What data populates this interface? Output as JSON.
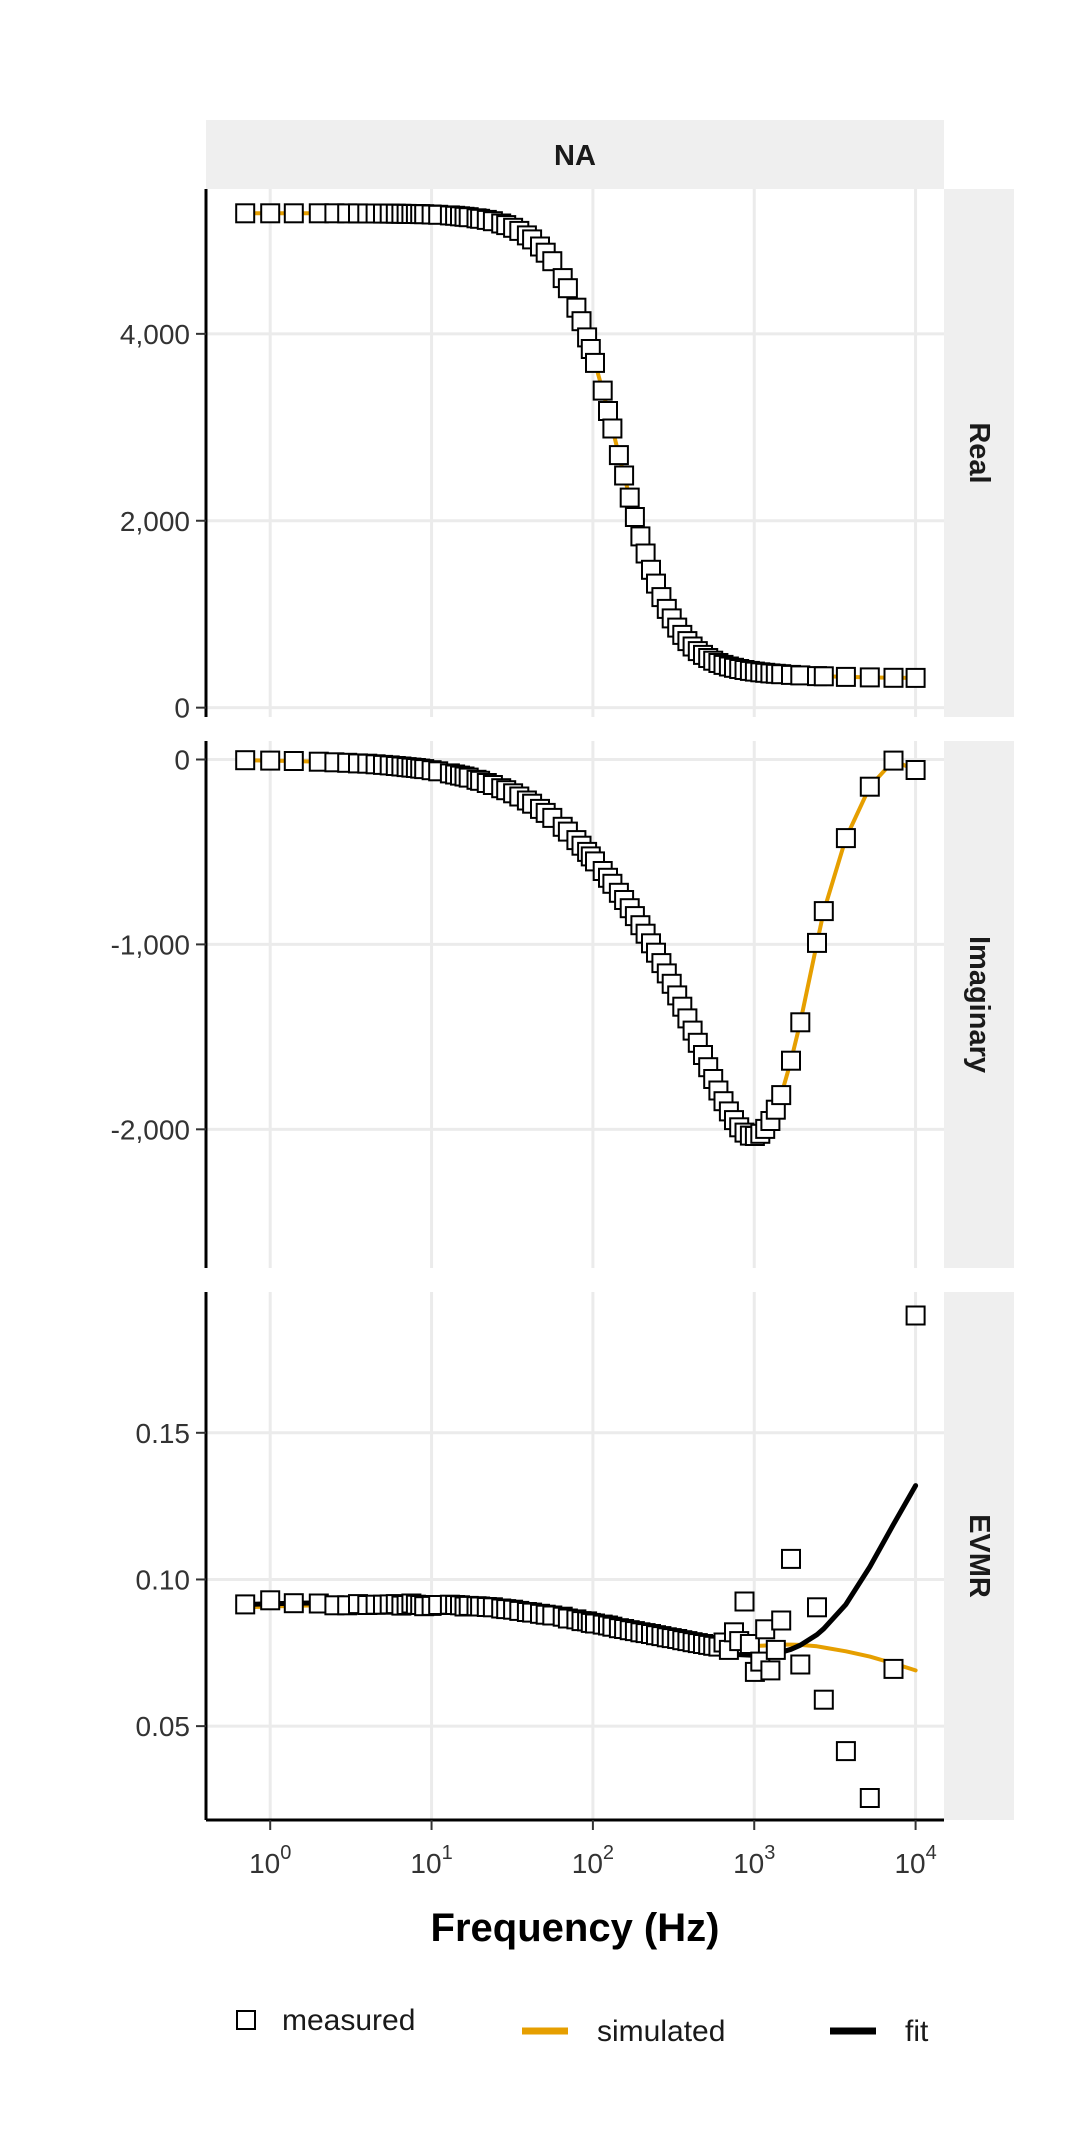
{
  "chart_data": {
    "type": "scatter",
    "facet_column_strip": "NA",
    "xlabel": "Frequency (Hz)",
    "x_scale": "log10",
    "xlim": [
      0.4,
      15000
    ],
    "x_tick_labels": [
      {
        "value": 1,
        "base": "10",
        "exp": "0"
      },
      {
        "value": 10,
        "base": "10",
        "exp": "1"
      },
      {
        "value": 100,
        "base": "10",
        "exp": "2"
      },
      {
        "value": 1000,
        "base": "10",
        "exp": "3"
      },
      {
        "value": 10000,
        "base": "10",
        "exp": "4"
      }
    ],
    "legend": {
      "placement": "bottom",
      "items": [
        {
          "key": "measured",
          "label": "measured",
          "shape": "open-square"
        },
        {
          "key": "simulated",
          "label": "simulated",
          "shape": "line",
          "color": "#E69F00"
        },
        {
          "key": "fit",
          "label": "fit",
          "shape": "line",
          "color": "#000000"
        }
      ]
    },
    "colors": {
      "measured": "#000000",
      "simulated": "#E69F00",
      "fit": "#000000",
      "strip_bg": "#efefef",
      "grid": "#ebebeb"
    },
    "grid": true,
    "frequencies": [
      0.7,
      1,
      1.4,
      2,
      2.5,
      3,
      3.5,
      4,
      4.5,
      5,
      5.5,
      6,
      6.5,
      7,
      7.5,
      8,
      8.5,
      9,
      10,
      11,
      13,
      14,
      15,
      16,
      17,
      19,
      20,
      22,
      24,
      27,
      29,
      32,
      35,
      39,
      42,
      47,
      51,
      56,
      65,
      70,
      79,
      85,
      92,
      97,
      103,
      115,
      124,
      132,
      145,
      156,
      169,
      182,
      197,
      212,
      229,
      246,
      266,
      287,
      308,
      333,
      358,
      385,
      415,
      447,
      481,
      518,
      557,
      600,
      645,
      697,
      749,
      807,
      870,
      940,
      1010,
      1090,
      1170,
      1260,
      1360,
      1470,
      1690,
      1930,
      2450,
      2700,
      3700,
      5200,
      7300,
      10000
    ],
    "panels": [
      {
        "strip": "Real",
        "ylim": [
          -100,
          5550
        ],
        "y_ticks": [
          0,
          2000,
          4000
        ],
        "y_tick_labels": [
          "0",
          "2,000",
          "4,000"
        ],
        "simulated": [
          5290,
          5290,
          5290,
          5290,
          5290,
          5289,
          5289,
          5288,
          5288,
          5287,
          5287,
          5286,
          5285,
          5284,
          5283,
          5282,
          5281,
          5280,
          5277,
          5274,
          5267,
          5263,
          5258,
          5253,
          5248,
          5237,
          5231,
          5219,
          5205,
          5181,
          5164,
          5135,
          5102,
          5053,
          5011,
          4935,
          4868,
          4777,
          4597,
          4488,
          4280,
          4135,
          3962,
          3838,
          3689,
          3393,
          3174,
          2987,
          2702,
          2484,
          2248,
          2040,
          1833,
          1650,
          1475,
          1328,
          1183,
          1057,
          955,
          857,
          779,
          712,
          654,
          605,
          565,
          531,
          502,
          478,
          458,
          440,
          426,
          414,
          403,
          393,
          386,
          378,
          373,
          367,
          362,
          358,
          351,
          345,
          338,
          335,
          329,
          324,
          320,
          318
        ],
        "measured": [
          5290,
          5290,
          5290,
          5290,
          5290,
          5289,
          5289,
          5288,
          5288,
          5287,
          5287,
          5286,
          5285,
          5284,
          5283,
          5282,
          5281,
          5280,
          5277,
          5274,
          5267,
          5263,
          5258,
          5253,
          5248,
          5237,
          5231,
          5219,
          5205,
          5181,
          5164,
          5135,
          5102,
          5053,
          5011,
          4935,
          4868,
          4777,
          4597,
          4488,
          4280,
          4135,
          3962,
          3838,
          3689,
          3393,
          3174,
          2987,
          2702,
          2484,
          2248,
          2040,
          1833,
          1650,
          1475,
          1328,
          1183,
          1057,
          955,
          857,
          779,
          712,
          654,
          605,
          565,
          531,
          502,
          478,
          458,
          440,
          426,
          414,
          403,
          393,
          386,
          378,
          373,
          367,
          362,
          358,
          351,
          345,
          338,
          335,
          329,
          324,
          320,
          318
        ]
      },
      {
        "strip": "Imaginary",
        "ylim": [
          -2750,
          100
        ],
        "y_ticks": [
          -2000,
          -1000,
          0
        ],
        "y_tick_labels": [
          "-2,000",
          "-1,000",
          "0"
        ],
        "simulated": [
          -4,
          -6,
          -8,
          -12,
          -15,
          -18,
          -21,
          -23,
          -26,
          -29,
          -32,
          -35,
          -38,
          -41,
          -44,
          -46,
          -49,
          -52,
          -58,
          -64,
          -75,
          -81,
          -87,
          -92,
          -98,
          -110,
          -115,
          -127,
          -138,
          -155,
          -166,
          -183,
          -200,
          -222,
          -239,
          -267,
          -289,
          -316,
          -364,
          -390,
          -436,
          -466,
          -500,
          -524,
          -551,
          -603,
          -640,
          -672,
          -721,
          -760,
          -804,
          -847,
          -896,
          -942,
          -994,
          -1045,
          -1101,
          -1157,
          -1213,
          -1276,
          -1337,
          -1400,
          -1466,
          -1532,
          -1598,
          -1664,
          -1728,
          -1790,
          -1848,
          -1903,
          -1950,
          -1989,
          -2018,
          -2034,
          -2036,
          -2024,
          -1998,
          -1955,
          -1894,
          -1815,
          -1629,
          -1421,
          -992,
          -820,
          -425,
          -147,
          -6,
          -57
        ],
        "measured": [
          -4,
          -6,
          -8,
          -12,
          -15,
          -18,
          -21,
          -23,
          -26,
          -29,
          -32,
          -35,
          -38,
          -41,
          -44,
          -46,
          -49,
          -52,
          -58,
          -64,
          -75,
          -81,
          -87,
          -92,
          -98,
          -110,
          -115,
          -127,
          -138,
          -155,
          -166,
          -183,
          -200,
          -222,
          -239,
          -267,
          -289,
          -316,
          -364,
          -390,
          -436,
          -466,
          -500,
          -524,
          -551,
          -603,
          -640,
          -672,
          -721,
          -760,
          -804,
          -847,
          -896,
          -942,
          -994,
          -1045,
          -1101,
          -1157,
          -1213,
          -1276,
          -1337,
          -1400,
          -1466,
          -1532,
          -1598,
          -1664,
          -1728,
          -1790,
          -1848,
          -1903,
          -1950,
          -1989,
          -2018,
          -2034,
          -2036,
          -2024,
          -1998,
          -1955,
          -1894,
          -1815,
          -1629,
          -1421,
          -992,
          -820,
          -425,
          -147,
          -6,
          -57
        ]
      },
      {
        "strip": "EVMR",
        "ylim": [
          0.018,
          0.198
        ],
        "y_ticks": [
          0.05,
          0.1,
          0.15
        ],
        "y_tick_labels": [
          "0.05",
          "0.10",
          "0.15"
        ],
        "simulated": [
          0.0905,
          0.0908,
          0.091,
          0.0912,
          0.0913,
          0.0913,
          0.0914,
          0.0914,
          0.0914,
          0.0914,
          0.0914,
          0.0914,
          0.0914,
          0.0914,
          0.0914,
          0.0913,
          0.0913,
          0.0913,
          0.0912,
          0.0912,
          0.0911,
          0.091,
          0.091,
          0.0909,
          0.0908,
          0.0907,
          0.0906,
          0.0905,
          0.0903,
          0.09,
          0.0898,
          0.0895,
          0.0892,
          0.0889,
          0.0886,
          0.0882,
          0.0879,
          0.0875,
          0.0869,
          0.0866,
          0.0861,
          0.0858,
          0.0854,
          0.0852,
          0.0849,
          0.0844,
          0.0841,
          0.0838,
          0.0833,
          0.0829,
          0.0825,
          0.0821,
          0.0817,
          0.0813,
          0.0809,
          0.0805,
          0.0801,
          0.0797,
          0.0793,
          0.0789,
          0.0785,
          0.0781,
          0.0778,
          0.0775,
          0.0772,
          0.077,
          0.0769,
          0.0768,
          0.0768,
          0.0768,
          0.0769,
          0.077,
          0.0771,
          0.0772,
          0.0773,
          0.0774,
          0.0775,
          0.0776,
          0.0777,
          0.0778,
          0.0778,
          0.0777,
          0.0772,
          0.0768,
          0.0755,
          0.0737,
          0.0714,
          0.069
        ],
        "fit": [
          0.0915,
          0.0917,
          0.0919,
          0.092,
          0.0921,
          0.0921,
          0.0921,
          0.0921,
          0.0921,
          0.0921,
          0.0921,
          0.0921,
          0.0921,
          0.0921,
          0.0921,
          0.092,
          0.092,
          0.092,
          0.092,
          0.0919,
          0.0918,
          0.0917,
          0.0917,
          0.0916,
          0.0915,
          0.0914,
          0.0913,
          0.0911,
          0.0909,
          0.0907,
          0.0905,
          0.0902,
          0.0899,
          0.0896,
          0.0893,
          0.0889,
          0.0886,
          0.0882,
          0.0877,
          0.0874,
          0.0869,
          0.0866,
          0.0862,
          0.086,
          0.0857,
          0.0852,
          0.0849,
          0.0846,
          0.0842,
          0.0838,
          0.0834,
          0.083,
          0.0825,
          0.0821,
          0.0817,
          0.0812,
          0.0807,
          0.0802,
          0.0797,
          0.0792,
          0.0787,
          0.0782,
          0.0777,
          0.0772,
          0.0767,
          0.0762,
          0.0758,
          0.0754,
          0.0751,
          0.0748,
          0.0746,
          0.0744,
          0.0743,
          0.0742,
          0.0742,
          0.0742,
          0.0743,
          0.0745,
          0.0748,
          0.0752,
          0.0762,
          0.0776,
          0.0812,
          0.0832,
          0.0915,
          0.1043,
          0.1188,
          0.132
        ],
        "measured": [
          0.0915,
          0.0929,
          0.0919,
          0.0918,
          0.0912,
          0.0912,
          0.0916,
          0.0913,
          0.0914,
          0.0914,
          0.0915,
          0.0916,
          0.0911,
          0.0913,
          0.0918,
          0.0914,
          0.0913,
          0.0909,
          0.091,
          0.0913,
          0.0914,
          0.0913,
          0.0912,
          0.0908,
          0.091,
          0.0909,
          0.0908,
          0.0906,
          0.0905,
          0.0901,
          0.0899,
          0.0897,
          0.0893,
          0.0889,
          0.0887,
          0.0883,
          0.088,
          0.0877,
          0.0873,
          0.0867,
          0.0864,
          0.0858,
          0.0857,
          0.0852,
          0.085,
          0.0846,
          0.0843,
          0.0839,
          0.0834,
          0.0831,
          0.0827,
          0.0824,
          0.082,
          0.0817,
          0.0814,
          0.081,
          0.0807,
          0.0803,
          0.08,
          0.0797,
          0.0793,
          0.079,
          0.0786,
          0.0783,
          0.078,
          0.0777,
          0.0774,
          0.0771,
          0.0785,
          0.076,
          0.082,
          0.079,
          0.0925,
          0.078,
          0.0685,
          0.072,
          0.083,
          0.069,
          0.076,
          0.086,
          0.107,
          0.071,
          0.0905,
          0.059,
          0.0415,
          0.0255,
          0.0695,
          0.19
        ]
      }
    ]
  }
}
